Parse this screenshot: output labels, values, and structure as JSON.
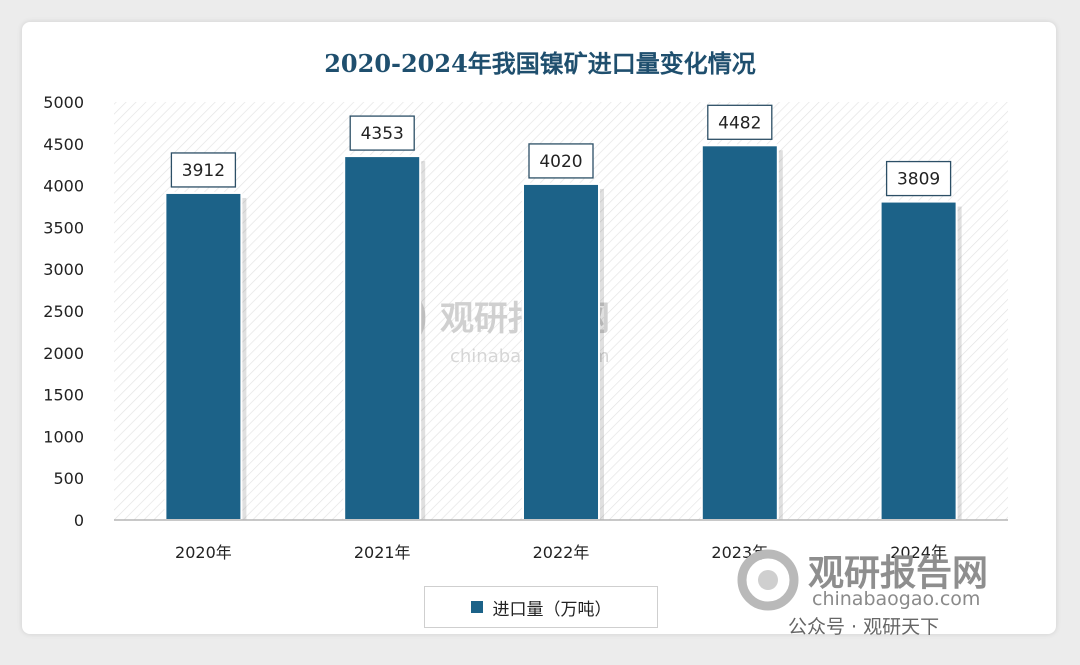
{
  "title": "2020-2024年我国镍矿进口量变化情况",
  "chart_data": {
    "type": "bar",
    "categories": [
      "2020年",
      "2021年",
      "2022年",
      "2023年",
      "2024年"
    ],
    "series": [
      {
        "name": "进口量（万吨）",
        "values": [
          3912,
          4353,
          4020,
          4482,
          3809
        ]
      }
    ],
    "data_labels": [
      "3912",
      "4353",
      "4020",
      "4482",
      "3809"
    ],
    "ylim": [
      0,
      5000
    ],
    "yticks": [
      0,
      500,
      1000,
      1500,
      2000,
      2500,
      3000,
      3500,
      4000,
      4500,
      5000
    ],
    "grid": false,
    "legend_position": "bottom",
    "colors": {
      "bar": "#1c6288",
      "title": "#1f4f6e"
    }
  },
  "legend": {
    "label": "进口量（万吨）"
  },
  "watermark": {
    "center_brand": "观研报告网",
    "center_url": "chinabaogao.com",
    "corner_brand": "观研报告网",
    "corner_url": "chinabaogao.com",
    "corner_wechat": "公众号 · 观研天下"
  }
}
